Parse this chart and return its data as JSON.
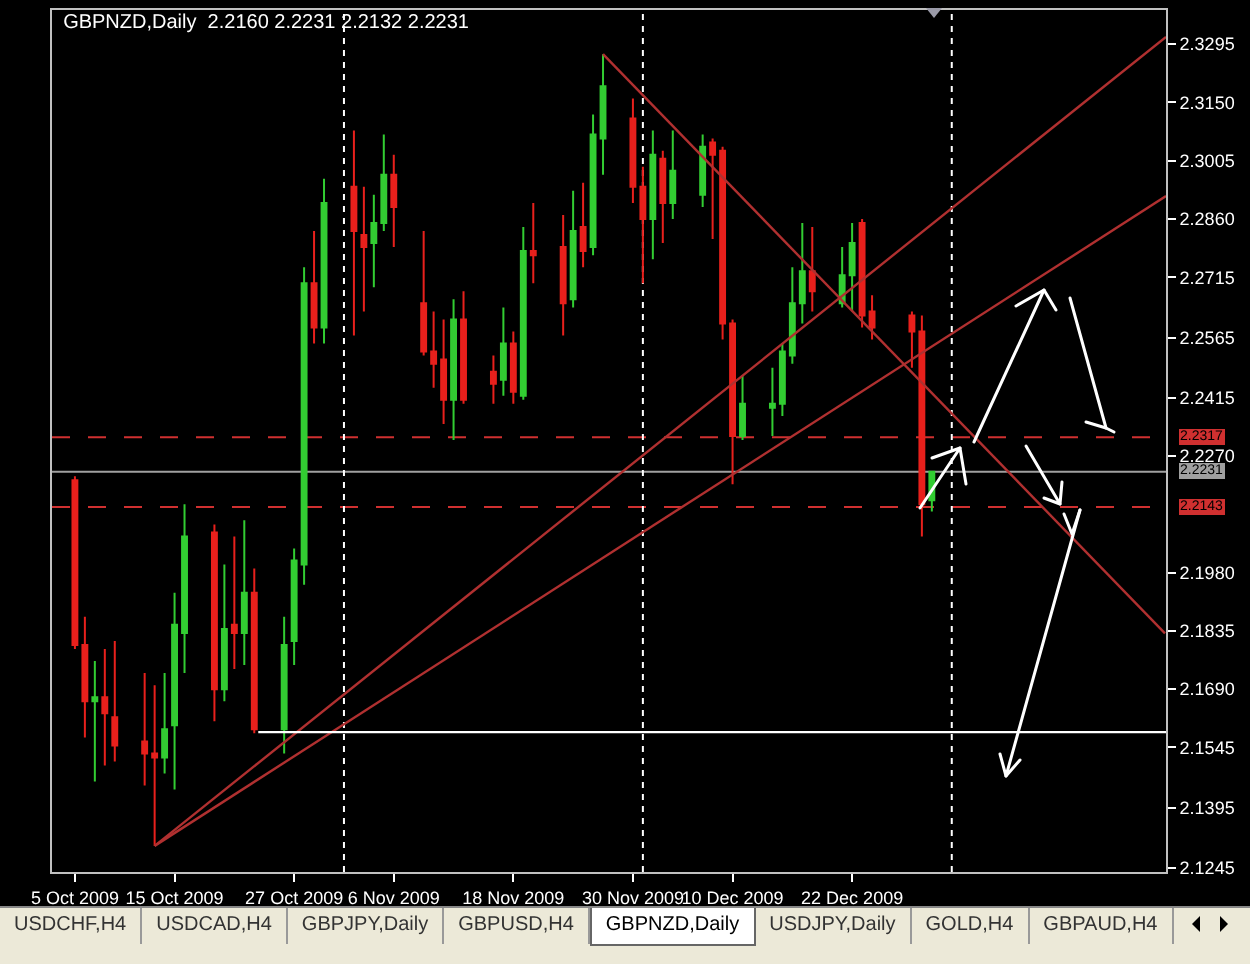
{
  "chart_data": {
    "type": "candlestick",
    "title": "GBPNZD,Daily  2.2160 2.2231 2.2132 2.2231",
    "x": [
      "2009-10-05",
      "2009-10-06",
      "2009-10-07",
      "2009-10-08",
      "2009-10-09",
      "2009-10-12",
      "2009-10-13",
      "2009-10-14",
      "2009-10-15",
      "2009-10-16",
      "2009-10-19",
      "2009-10-20",
      "2009-10-21",
      "2009-10-22",
      "2009-10-23",
      "2009-10-26",
      "2009-10-27",
      "2009-10-28",
      "2009-10-29",
      "2009-10-30",
      "2009-11-02",
      "2009-11-03",
      "2009-11-04",
      "2009-11-05",
      "2009-11-06",
      "2009-11-09",
      "2009-11-10",
      "2009-11-11",
      "2009-11-12",
      "2009-11-13",
      "2009-11-16",
      "2009-11-17",
      "2009-11-18",
      "2009-11-19",
      "2009-11-20",
      "2009-11-23",
      "2009-11-24",
      "2009-11-25",
      "2009-11-26",
      "2009-11-27",
      "2009-11-30",
      "2009-12-01",
      "2009-12-02",
      "2009-12-03",
      "2009-12-04",
      "2009-12-07",
      "2009-12-08",
      "2009-12-09",
      "2009-12-10",
      "2009-12-11",
      "2009-12-14",
      "2009-12-15",
      "2009-12-16",
      "2009-12-17",
      "2009-12-18",
      "2009-12-21",
      "2009-12-22",
      "2009-12-23",
      "2009-12-24",
      "2009-12-28",
      "2009-12-29",
      "2009-12-30"
    ],
    "series": [
      {
        "type": "line",
        "x": [
          "2009-10-13",
          "2010-01-22T12:00"
        ],
        "values": [
          2.13,
          2.3313
        ],
        "color": "#b03030"
      },
      {
        "type": "line",
        "x": [
          "2009-10-13",
          "2010-01-22T12:00"
        ],
        "values": [
          2.13,
          2.2917
        ],
        "color": "#b03030"
      },
      {
        "type": "line",
        "x": [
          "2009-11-27",
          "2010-01-22T09:36"
        ],
        "values": [
          2.327,
          2.1829
        ],
        "color": "#b03030"
      },
      {
        "type": "line",
        "x": [
          "2009-10-23T09:36",
          "2010-01-22T12:00"
        ],
        "values": [
          2.1583,
          2.1583
        ],
        "color": "#ffffff"
      },
      {
        "ohlc": [
          [
            2.221,
            2.222,
            2.179,
            2.18
          ],
          [
            2.18,
            2.187,
            2.157,
            2.166
          ],
          [
            2.166,
            2.176,
            2.146,
            2.167
          ],
          [
            2.167,
            2.179,
            2.15,
            2.163
          ],
          [
            2.162,
            2.181,
            2.151,
            2.155
          ],
          [
            2.156,
            2.173,
            2.145,
            2.153
          ],
          [
            2.153,
            2.17,
            2.13,
            2.152
          ],
          [
            2.152,
            2.173,
            2.148,
            2.159
          ],
          [
            2.16,
            2.193,
            2.144,
            2.185
          ],
          [
            2.183,
            2.215,
            2.173,
            2.207
          ],
          [
            2.208,
            2.21,
            2.161,
            2.169
          ],
          [
            2.169,
            2.2,
            2.166,
            2.184
          ],
          [
            2.185,
            2.207,
            2.174,
            2.183
          ],
          [
            2.183,
            2.211,
            2.175,
            2.193
          ],
          [
            2.193,
            2.199,
            2.158,
            2.159
          ],
          [
            2.159,
            2.187,
            2.153,
            2.18
          ],
          [
            2.181,
            2.204,
            2.175,
            2.201
          ],
          [
            2.2,
            2.274,
            2.195,
            2.27
          ],
          [
            2.27,
            2.283,
            2.255,
            2.259
          ],
          [
            2.259,
            2.296,
            2.255,
            2.29
          ],
          [
            2.294,
            2.308,
            2.257,
            2.283
          ],
          [
            2.282,
            2.294,
            2.263,
            2.279
          ],
          [
            2.28,
            2.292,
            2.269,
            2.285
          ],
          [
            2.285,
            2.307,
            2.283,
            2.297
          ],
          [
            2.297,
            2.302,
            2.279,
            2.289
          ],
          [
            2.265,
            2.283,
            2.252,
            2.253
          ],
          [
            2.253,
            2.263,
            2.244,
            2.25
          ],
          [
            2.251,
            2.261,
            2.235,
            2.241
          ],
          [
            2.241,
            2.266,
            2.231,
            2.261
          ],
          [
            2.261,
            2.268,
            2.24,
            2.241
          ],
          [
            2.248,
            2.252,
            2.24,
            2.245
          ],
          [
            2.246,
            2.264,
            2.242,
            2.255
          ],
          [
            2.255,
            2.258,
            2.24,
            2.243
          ],
          [
            2.242,
            2.284,
            2.241,
            2.278
          ],
          [
            2.278,
            2.29,
            2.27,
            2.277
          ],
          [
            2.279,
            2.287,
            2.257,
            2.265
          ],
          [
            2.266,
            2.293,
            2.264,
            2.283
          ],
          [
            2.284,
            2.295,
            2.274,
            2.278
          ],
          [
            2.279,
            2.312,
            2.277,
            2.307
          ],
          [
            2.306,
            2.327,
            2.297,
            2.319
          ],
          [
            2.311,
            2.316,
            2.29,
            2.294
          ],
          [
            2.294,
            2.299,
            2.27,
            2.286
          ],
          [
            2.286,
            2.308,
            2.276,
            2.302
          ],
          [
            2.301,
            2.303,
            2.28,
            2.29
          ],
          [
            2.29,
            2.308,
            2.286,
            2.298
          ],
          [
            2.292,
            2.307,
            2.289,
            2.304
          ],
          [
            2.305,
            2.306,
            2.281,
            2.302
          ],
          [
            2.303,
            2.304,
            2.256,
            2.26
          ],
          [
            2.26,
            2.261,
            2.22,
            2.232
          ],
          [
            2.232,
            2.247,
            2.231,
            2.24
          ],
          [
            2.239,
            2.249,
            2.232,
            2.24
          ],
          [
            2.24,
            2.255,
            2.237,
            2.253
          ],
          [
            2.252,
            2.274,
            2.25,
            2.265
          ],
          [
            2.265,
            2.285,
            2.26,
            2.273
          ],
          [
            2.273,
            2.284,
            2.263,
            2.268
          ],
          [
            2.265,
            2.279,
            2.264,
            2.272
          ],
          [
            2.272,
            2.285,
            2.263,
            2.28
          ],
          [
            2.285,
            2.286,
            2.259,
            2.262
          ],
          [
            2.263,
            2.267,
            2.256,
            2.259
          ],
          [
            2.262,
            2.263,
            2.249,
            2.258
          ],
          [
            2.258,
            2.262,
            2.207,
            2.215
          ],
          [
            2.216,
            2.2231,
            2.2132,
            2.2231
          ]
        ],
        "colors": [
          "#e8201c",
          "#e8201c",
          "#32cd32",
          "#e8201c",
          "#e8201c",
          "#e8201c",
          "#e8201c",
          "#32cd32",
          "#32cd32",
          "#32cd32",
          "#e8201c",
          "#32cd32",
          "#e8201c",
          "#32cd32",
          "#e8201c",
          "#32cd32",
          "#32cd32",
          "#32cd32",
          "#e8201c",
          "#32cd32",
          "#e8201c",
          "#e8201c",
          "#32cd32",
          "#32cd32",
          "#e8201c",
          "#e8201c",
          "#e8201c",
          "#e8201c",
          "#32cd32",
          "#e8201c",
          "#e8201c",
          "#32cd32",
          "#e8201c",
          "#32cd32",
          "#e8201c",
          "#e8201c",
          "#32cd32",
          "#e8201c",
          "#32cd32",
          "#32cd32",
          "#e8201c",
          "#e8201c",
          "#32cd32",
          "#e8201c",
          "#32cd32",
          "#32cd32",
          "#e8201c",
          "#e8201c",
          "#e8201c",
          "#32cd32",
          "#32cd32",
          "#32cd32",
          "#32cd32",
          "#32cd32",
          "#e8201c",
          "#32cd32",
          "#32cd32",
          "#e8201c",
          "#e8201c",
          "#e8201c",
          "#e8201c",
          "#32cd32"
        ]
      }
    ],
    "xlim": [
      "2009-10-02T16:48",
      "2010-01-22T12:00"
    ],
    "ylim": [
      2.1235,
      2.338
    ],
    "xticks": [
      {
        "value": "2009-10-05",
        "label": "5 Oct 2009"
      },
      {
        "value": "2009-10-15",
        "label": "15 Oct 2009"
      },
      {
        "value": "2009-10-27",
        "label": "27 Oct 2009"
      },
      {
        "value": "2009-11-06",
        "label": "6 Nov 2009"
      },
      {
        "value": "2009-11-18",
        "label": "18 Nov 2009"
      },
      {
        "value": "2009-11-30",
        "label": "30 Nov 2009"
      },
      {
        "value": "2009-12-10",
        "label": "10 Dec 2009"
      },
      {
        "value": "2009-12-22",
        "label": "22 Dec 2009"
      }
    ],
    "yticks": [
      {
        "value": 2.3295,
        "label": "2.3295"
      },
      {
        "value": 2.315,
        "label": "2.3150"
      },
      {
        "value": 2.3005,
        "label": "2.3005"
      },
      {
        "value": 2.286,
        "label": "2.2860"
      },
      {
        "value": 2.2715,
        "label": "2.2715"
      },
      {
        "value": 2.2565,
        "label": "2.2565"
      },
      {
        "value": 2.2415,
        "label": "2.2415"
      },
      {
        "value": 2.227,
        "label": "2.2270"
      },
      {
        "value": 2.198,
        "label": "2.1980"
      },
      {
        "value": 2.1835,
        "label": "2.1835"
      },
      {
        "value": 2.169,
        "label": "2.1690"
      },
      {
        "value": 2.1545,
        "label": "2.1545"
      },
      {
        "value": 2.1395,
        "label": "2.1395"
      },
      {
        "value": 2.1245,
        "label": "2.1245"
      }
    ],
    "ref_lines": [
      {
        "axis": "y",
        "value": 2.2317,
        "label": "2.2317",
        "color": "#d03030",
        "line_style": "dashed"
      },
      {
        "axis": "y",
        "value": 2.2143,
        "label": "2.2143",
        "color": "#d03030",
        "line_style": "dashed"
      },
      {
        "axis": "y",
        "value": 2.2231,
        "label": "2.2231",
        "color": "#a0a0a0",
        "line_style": "solid"
      },
      {
        "axis": "x",
        "value": "2009-11-01",
        "color": "#ffffff",
        "line_style": "dotted"
      },
      {
        "axis": "x",
        "value": "2009-12-01",
        "color": "#ffffff",
        "line_style": "dotted"
      },
      {
        "axis": "x",
        "value": "2010-01-01",
        "color": "#ffffff",
        "line_style": "dotted"
      }
    ],
    "annotations": [
      "USDCHF,H4",
      "USDCAD,H4",
      "GBPJPY,Daily",
      "GBPUSD,H4",
      "GBPNZD,Daily",
      "USDJPY,Daily",
      "GOLD,H4",
      "GBPAUD,H4"
    ],
    "grid": false
  }
}
